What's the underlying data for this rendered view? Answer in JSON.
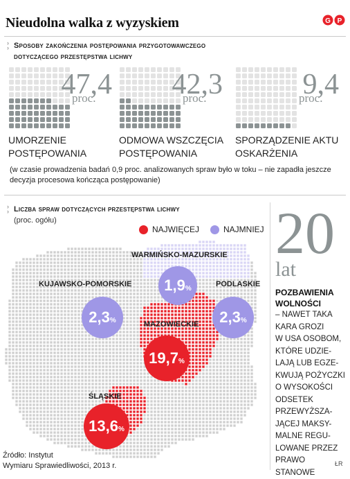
{
  "header": {
    "title": "Nieudolna walka z wyzyskiem",
    "logo_text": "GP"
  },
  "section1": {
    "heading_line1": "Sposoby zakończenia postępowania przygotowawczego",
    "heading_line2": "dotyczącego przestępstwa lichwy",
    "note_line1": "(w czasie prowadzenia badań 0,9 proc. analizowanych spraw było w toku – nie zapadła jeszcze",
    "note_line2": "decyzja procesowa kończąca postępowanie)"
  },
  "chart_data": [
    {
      "type": "bar",
      "categories": [
        "Umorzenie postępowania",
        "Odmowa wszczęcia postępowania",
        "Sporządzenie aktu oskarżenia"
      ],
      "values": [
        47.4,
        42.3,
        9.4
      ],
      "value_labels": [
        "47,4",
        "42,3",
        "9,4"
      ],
      "unit": "proc.",
      "label_lines": [
        [
          "UMORZENIE",
          "POSTĘPOWANIA"
        ],
        [
          "ODMOWA WSZCZĘCIA",
          "POSTĘPOWANIA"
        ],
        [
          "SPORZĄDZENIE AKTU",
          "OSKARŻENIA"
        ]
      ],
      "title": "Sposoby zakończenia postępowania przygotowawczego dotyczącego przestępstwa lichwy",
      "filled_color": "#8c9394",
      "empty_color": "#e3e3e3"
    },
    {
      "type": "scatter",
      "title": "Liczba spraw dotyczących przestępstwa lichwy",
      "subtitle": "(proc. ogółu)",
      "legend": [
        {
          "label": "NAJWIĘCEJ",
          "color": "#e8222a"
        },
        {
          "label": "NAJMNIEJ",
          "color": "#9f97e6"
        }
      ],
      "categories": [
        "Warmińsko-mazurskie",
        "Kujawsko-pomorskie",
        "Podlaskie",
        "Mazowieckie",
        "Śląskie"
      ],
      "region_labels": [
        "WARMIŃSKO-MAZURSKIE",
        "KUJAWSKO-POMORSKIE",
        "PODLASKIE",
        "MAZOWIECKIE",
        "ŚLĄSKIE"
      ],
      "values": [
        1.9,
        2.3,
        2.3,
        19.7,
        13.6
      ],
      "value_labels": [
        "1,9",
        "2,3",
        "2,3",
        "19,7",
        "13,6"
      ],
      "value_unit": "%",
      "group": [
        "least",
        "least",
        "least",
        "most",
        "most"
      ]
    }
  ],
  "sidebar": {
    "number": "20",
    "unit": "lat",
    "title_line1": "POZBAWIENIA",
    "title_line2": "WOLNOŚCI",
    "body_lines": [
      "– NAWET TAKA",
      "KARA GROZI",
      "W USA OSOBOM,",
      "KTÓRE UDZIE-",
      "LAJĄ LUB EGZE-",
      "KWUJĄ POŻYCZKI",
      "O WYSOKOŚCI",
      "ODSETEK",
      "PRZEWYŻSZA-",
      "JĄCEJ MAKSY-",
      "MALNE REGU-",
      "LOWANE PRZEZ",
      "PRAWO",
      "STANOWE"
    ]
  },
  "footer": {
    "source_line1": "Źródło: Instytut",
    "source_line2": "Wymiaru Sprawiedliwości, 2013 r.",
    "credit": "ŁR"
  },
  "colors": {
    "gray_text": "#8c9394",
    "red": "#e8222a",
    "purple": "#9f97e6",
    "map_dots": "#cfcfcf"
  }
}
